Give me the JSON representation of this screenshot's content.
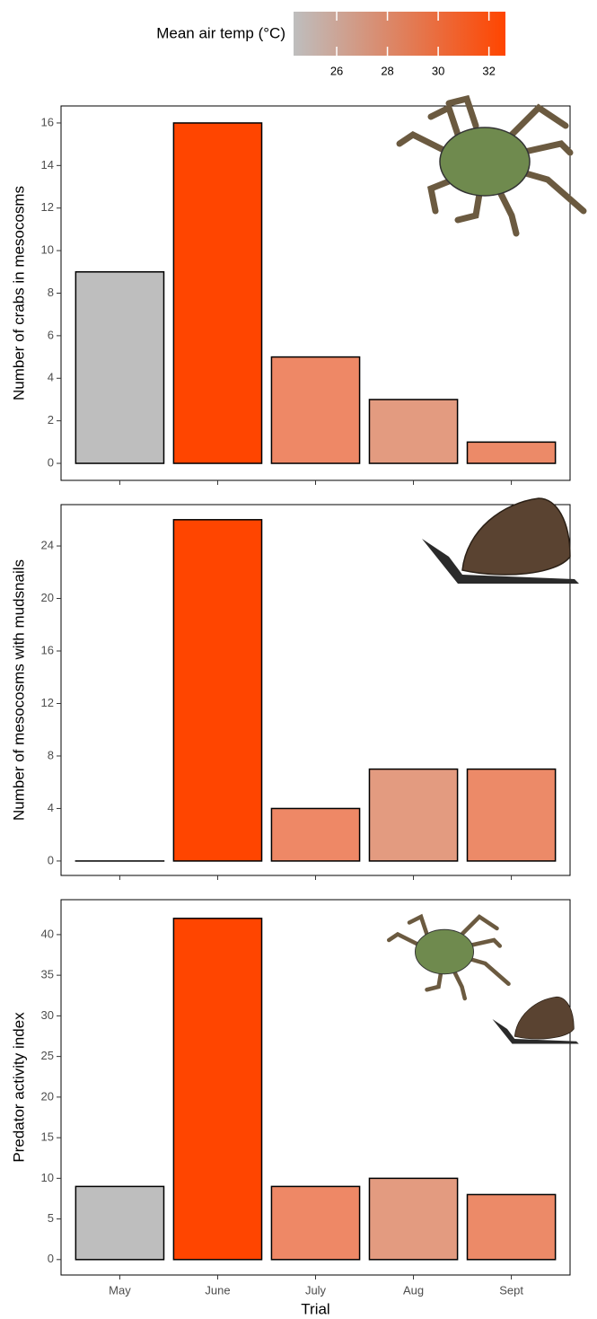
{
  "legend": {
    "title": "Mean air temp (°C)",
    "lim": [
      24.3,
      32.65
    ],
    "ticks": [
      26,
      28,
      30,
      32
    ],
    "colors": [
      "#bebebe",
      "#ff4500"
    ]
  },
  "chart_data": [
    {
      "type": "bar",
      "ylabel": "Number of crabs in mesocosms",
      "values": [
        9,
        16,
        5,
        3,
        1
      ],
      "colors": [
        "#bebebe",
        "#ff4500",
        "#ee8866",
        "#e39b80",
        "#ec8a68"
      ],
      "ylim": [
        -0.8,
        16.8
      ],
      "yticks": [
        0,
        2,
        4,
        6,
        8,
        10,
        12,
        14,
        16
      ]
    },
    {
      "type": "bar",
      "ylabel": "Number of mesocosms with mudsnails",
      "values": [
        0,
        26,
        4,
        7,
        7
      ],
      "colors": [
        "#bebebe",
        "#ff4500",
        "#ee8866",
        "#e39b80",
        "#ec8a68"
      ],
      "ylim": [
        -1.1,
        27.15
      ],
      "yticks": [
        0,
        4,
        8,
        12,
        16,
        20,
        24
      ]
    },
    {
      "type": "bar",
      "ylabel": "Predator activity index",
      "xlabel": "Trial",
      "categories": [
        "May",
        "June",
        "July",
        "Aug",
        "Sept"
      ],
      "values": [
        9,
        42,
        9,
        10,
        8
      ],
      "colors": [
        "#bebebe",
        "#ff4500",
        "#ee8866",
        "#e39b80",
        "#ec8a68"
      ],
      "ylim": [
        -1.9,
        44.3
      ],
      "yticks": [
        0,
        5,
        10,
        15,
        20,
        25,
        30,
        35,
        40
      ]
    }
  ]
}
